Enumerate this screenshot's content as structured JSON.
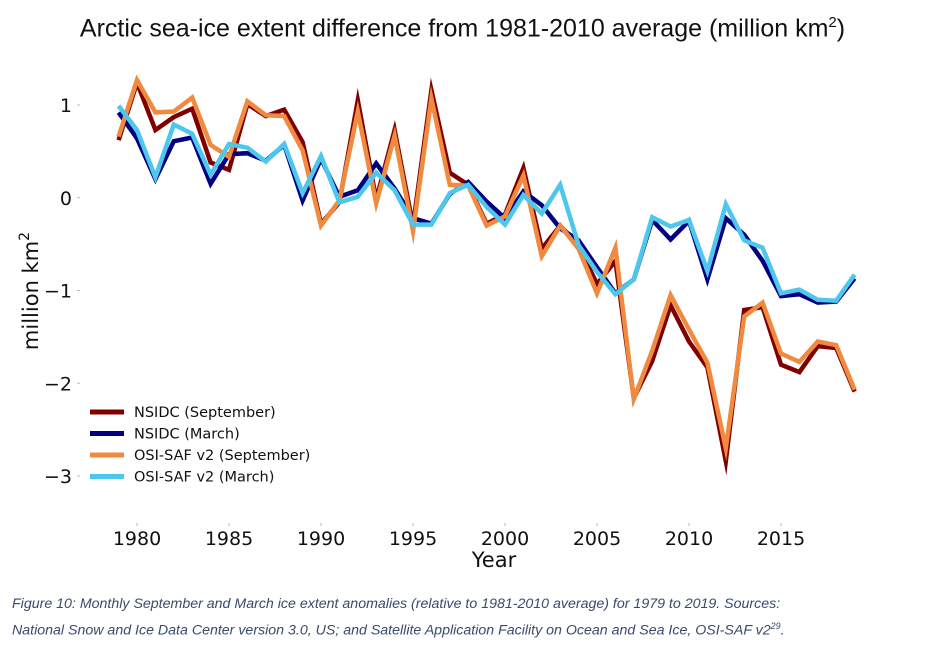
{
  "chart_data": {
    "type": "line",
    "title": "Arctic sea-ice extent difference from 1981-2010 average (million km",
    "title_superscript": "2",
    "title_suffix": ")",
    "xlabel": "Year",
    "ylabel": "million km",
    "ylabel_superscript": "2",
    "xlim": [
      1977.2,
      2020
    ],
    "ylim": [
      -3.4,
      1.45
    ],
    "xticks": [
      1980,
      1985,
      1990,
      1995,
      2000,
      2005,
      2010,
      2015
    ],
    "yticks": [
      1,
      0,
      -1,
      -2,
      -3
    ],
    "ytick_labels": [
      "1",
      "0",
      "−1",
      "−2",
      "−3"
    ],
    "grid": false,
    "legend_position": "lower-left",
    "x": [
      1979,
      1980,
      1981,
      1982,
      1983,
      1984,
      1985,
      1986,
      1987,
      1988,
      1989,
      1990,
      1991,
      1992,
      1993,
      1994,
      1995,
      1996,
      1997,
      1998,
      1999,
      2000,
      2001,
      2002,
      2003,
      2004,
      2005,
      2006,
      2007,
      2008,
      2009,
      2010,
      2011,
      2012,
      2013,
      2014,
      2015,
      2016,
      2017,
      2018,
      2019
    ],
    "series": [
      {
        "name": "NSIDC (September)",
        "color": "#800000",
        "values": [
          0.62,
          1.24,
          0.73,
          0.87,
          0.96,
          0.38,
          0.3,
          1.01,
          0.88,
          0.95,
          0.6,
          -0.28,
          -0.05,
          1.05,
          -0.02,
          0.73,
          -0.3,
          1.16,
          0.27,
          0.14,
          -0.28,
          -0.18,
          0.32,
          -0.55,
          -0.3,
          -0.52,
          -0.93,
          -0.68,
          -2.16,
          -1.76,
          -1.16,
          -1.55,
          -1.83,
          -2.84,
          -1.21,
          -1.18,
          -1.8,
          -1.88,
          -1.6,
          -1.62,
          -2.09
        ]
      },
      {
        "name": "NSIDC (March)",
        "color": "#000080",
        "values": [
          0.92,
          0.64,
          0.2,
          0.61,
          0.65,
          0.15,
          0.47,
          0.48,
          0.4,
          0.57,
          -0.03,
          0.42,
          0.01,
          0.08,
          0.37,
          0.1,
          -0.22,
          -0.28,
          0.04,
          0.17,
          -0.04,
          -0.22,
          0.07,
          -0.08,
          -0.33,
          -0.46,
          -0.75,
          -1.03,
          -0.88,
          -0.24,
          -0.45,
          -0.25,
          -0.88,
          -0.22,
          -0.4,
          -0.68,
          -1.06,
          -1.04,
          -1.13,
          -1.12,
          -0.87
        ]
      },
      {
        "name": "OSI-SAF v2 (September)",
        "color": "#ef8a3e",
        "values": [
          0.66,
          1.27,
          0.92,
          0.93,
          1.08,
          0.57,
          0.44,
          1.04,
          0.89,
          0.88,
          0.51,
          -0.3,
          -0.03,
          0.93,
          -0.06,
          0.67,
          -0.36,
          1.07,
          0.14,
          0.13,
          -0.3,
          -0.2,
          0.24,
          -0.63,
          -0.3,
          -0.55,
          -1.03,
          -0.54,
          -2.17,
          -1.65,
          -1.05,
          -1.42,
          -1.78,
          -2.7,
          -1.28,
          -1.13,
          -1.68,
          -1.77,
          -1.55,
          -1.59,
          -2.07
        ]
      },
      {
        "name": "OSI-SAF v2 (March)",
        "color": "#4dc8ec",
        "values": [
          0.99,
          0.73,
          0.22,
          0.79,
          0.69,
          0.25,
          0.58,
          0.54,
          0.39,
          0.58,
          0.05,
          0.45,
          -0.05,
          0.01,
          0.27,
          0.08,
          -0.29,
          -0.29,
          0.05,
          0.14,
          -0.1,
          -0.29,
          0.03,
          -0.17,
          0.14,
          -0.51,
          -0.8,
          -1.04,
          -0.88,
          -0.21,
          -0.31,
          -0.24,
          -0.79,
          -0.07,
          -0.46,
          -0.54,
          -1.03,
          -0.99,
          -1.1,
          -1.11,
          -0.83
        ]
      }
    ]
  },
  "caption": {
    "line1": "Figure 10: Monthly September and March ice extent anomalies (relative to 1981-2010 average) for 1979 to 2019. Sources:",
    "line2": "National Snow and Ice Data Center version 3.0, US; and Satellite Application Facility on Ocean and Sea Ice, OSI-SAF v2",
    "line2_superscript": "29",
    "line2_suffix": "."
  }
}
